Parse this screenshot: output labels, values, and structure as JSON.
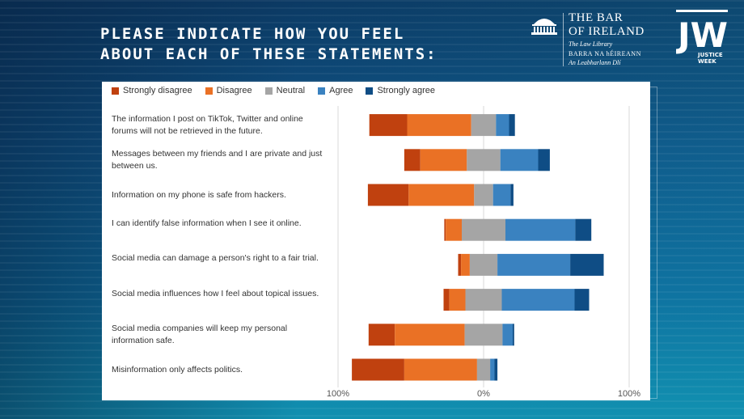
{
  "title": {
    "line1": "PLEASE INDICATE HOW YOU FEEL",
    "line2": "ABOUT EACH OF THESE STATEMENTS:"
  },
  "logo_bar_of_ireland": {
    "line1": "THE BAR",
    "line2": "OF IRELAND",
    "line3": "The Law Library",
    "line4": "BARRA NA hÉIREANN",
    "line5": "An Leabharlann Dlí"
  },
  "logo_justice_week": {
    "mark": "JW",
    "line1": "JUSTICE",
    "line2": "WEEK"
  },
  "colors": {
    "strongly_disagree": "#c0410f",
    "disagree": "#ea7125",
    "neutral": "#a5a5a5",
    "agree": "#3a82c0",
    "strongly_agree": "#0f4d85"
  },
  "chart_data": {
    "type": "bar",
    "orientation": "horizontal-diverging-stacked",
    "categories": [
      "The information I post on TikTok, Twitter and online forums will not be retrieved in the future.",
      "Messages between my friends and I are private and just between us.",
      "Information on my phone is safe from hackers.",
      "I can identify false information when I see it online.",
      "Social media can damage a person's right to a fair trial.",
      "Social media influences how I feel about topical issues.",
      "Social media companies will keep my personal information safe.",
      "Misinformation only affects politics."
    ],
    "series": [
      {
        "name": "Strongly disagree",
        "values": [
          26,
          11,
          28,
          1,
          2,
          4,
          18,
          36
        ]
      },
      {
        "name": "Disagree",
        "values": [
          44,
          32,
          45,
          11,
          6,
          11,
          48,
          50
        ]
      },
      {
        "name": "Neutral",
        "values": [
          17,
          23,
          13,
          30,
          19,
          25,
          26,
          9
        ]
      },
      {
        "name": "Agree",
        "values": [
          9,
          26,
          12,
          48,
          50,
          50,
          7,
          3
        ]
      },
      {
        "name": "Strongly agree",
        "values": [
          4,
          8,
          2,
          11,
          23,
          10,
          1,
          2
        ]
      }
    ],
    "xlim": [
      -100,
      100
    ],
    "xticks": [
      "100%",
      "0%",
      "100%"
    ],
    "legend": "top",
    "grid": true
  }
}
